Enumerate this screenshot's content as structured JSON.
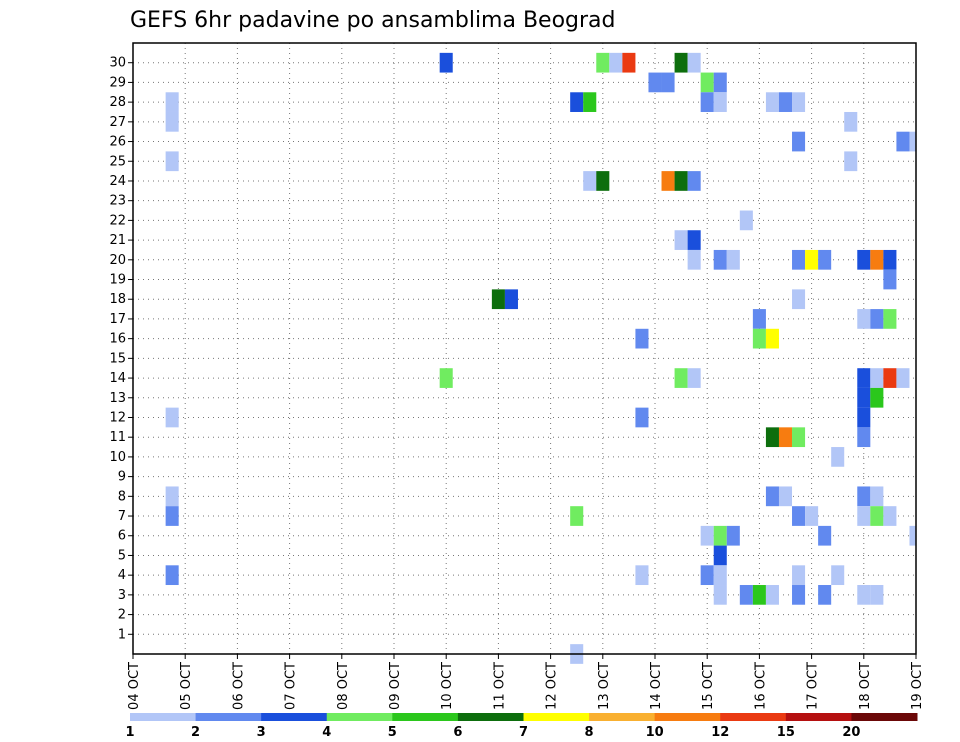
{
  "chart_data": {
    "type": "heatmap",
    "title": "GEFS 6hr padavine po ansamblima Beograd",
    "xlabel": "",
    "ylabel": "",
    "y_ticks": [
      1,
      2,
      3,
      4,
      5,
      6,
      7,
      8,
      9,
      10,
      11,
      12,
      13,
      14,
      15,
      16,
      17,
      18,
      19,
      20,
      21,
      22,
      23,
      24,
      25,
      26,
      27,
      28,
      29,
      30
    ],
    "x_ticks": [
      "04 OCT",
      "05 OCT",
      "06 OCT",
      "07 OCT",
      "08 OCT",
      "09 OCT",
      "10 OCT",
      "11 OCT",
      "12 OCT",
      "13 OCT",
      "14 OCT",
      "15 OCT",
      "16 OCT",
      "17 OCT",
      "18 OCT",
      "19 OCT"
    ],
    "xlim_days": [
      0,
      15
    ],
    "ylim": [
      0,
      30
    ],
    "time_step_hours": 6,
    "grid": true,
    "legend_placement": "bottom",
    "colorbar": {
      "labels": [
        "1",
        "2",
        "3",
        "4",
        "5",
        "6",
        "7",
        "8",
        "10",
        "12",
        "15",
        "20"
      ],
      "colors": [
        "#b2c6f7",
        "#6189ef",
        "#1a4fdc",
        "#70ec60",
        "#2bc71c",
        "#0d6e0d",
        "#ffff00",
        "#f9b030",
        "#f77c10",
        "#ea3a12",
        "#b51010",
        "#6b0808"
      ]
    },
    "cells": [
      {
        "m": 30,
        "t": "10 OCT 00Z",
        "v": 3
      },
      {
        "m": 30,
        "t": "13 OCT 00Z",
        "v": 4
      },
      {
        "m": 30,
        "t": "13 OCT 06Z",
        "v": 1
      },
      {
        "m": 30,
        "t": "13 OCT 12Z",
        "v": 12
      },
      {
        "m": 30,
        "t": "14 OCT 12Z",
        "v": 6
      },
      {
        "m": 30,
        "t": "14 OCT 18Z",
        "v": 1
      },
      {
        "m": 29,
        "t": "14 OCT 00Z",
        "v": 2
      },
      {
        "m": 29,
        "t": "14 OCT 06Z",
        "v": 2
      },
      {
        "m": 29,
        "t": "15 OCT 00Z",
        "v": 4
      },
      {
        "m": 29,
        "t": "15 OCT 06Z",
        "v": 2
      },
      {
        "m": 28,
        "t": "04 OCT 18Z",
        "v": 1
      },
      {
        "m": 28,
        "t": "12 OCT 12Z",
        "v": 3
      },
      {
        "m": 28,
        "t": "12 OCT 18Z",
        "v": 5
      },
      {
        "m": 28,
        "t": "15 OCT 00Z",
        "v": 2
      },
      {
        "m": 28,
        "t": "15 OCT 06Z",
        "v": 1
      },
      {
        "m": 28,
        "t": "16 OCT 06Z",
        "v": 1
      },
      {
        "m": 28,
        "t": "16 OCT 12Z",
        "v": 2
      },
      {
        "m": 28,
        "t": "16 OCT 18Z",
        "v": 1
      },
      {
        "m": 27,
        "t": "04 OCT 18Z",
        "v": 1
      },
      {
        "m": 27,
        "t": "17 OCT 18Z",
        "v": 1
      },
      {
        "m": 26,
        "t": "16 OCT 18Z",
        "v": 2
      },
      {
        "m": 26,
        "t": "18 OCT 18Z",
        "v": 2
      },
      {
        "m": 26,
        "t": "19 OCT 00Z",
        "v": 1
      },
      {
        "m": 25,
        "t": "04 OCT 18Z",
        "v": 1
      },
      {
        "m": 25,
        "t": "17 OCT 18Z",
        "v": 1
      },
      {
        "m": 24,
        "t": "12 OCT 18Z",
        "v": 1
      },
      {
        "m": 24,
        "t": "13 OCT 00Z",
        "v": 6
      },
      {
        "m": 24,
        "t": "14 OCT 06Z",
        "v": 10
      },
      {
        "m": 24,
        "t": "14 OCT 12Z",
        "v": 6
      },
      {
        "m": 24,
        "t": "14 OCT 18Z",
        "v": 2
      },
      {
        "m": 22,
        "t": "15 OCT 18Z",
        "v": 1
      },
      {
        "m": 21,
        "t": "14 OCT 12Z",
        "v": 1
      },
      {
        "m": 21,
        "t": "14 OCT 18Z",
        "v": 3
      },
      {
        "m": 20,
        "t": "14 OCT 18Z",
        "v": 1
      },
      {
        "m": 20,
        "t": "15 OCT 06Z",
        "v": 2
      },
      {
        "m": 20,
        "t": "15 OCT 12Z",
        "v": 1
      },
      {
        "m": 20,
        "t": "16 OCT 18Z",
        "v": 2
      },
      {
        "m": 20,
        "t": "17 OCT 00Z",
        "v": 7
      },
      {
        "m": 20,
        "t": "17 OCT 06Z",
        "v": 2
      },
      {
        "m": 20,
        "t": "18 OCT 00Z",
        "v": 3
      },
      {
        "m": 20,
        "t": "18 OCT 06Z",
        "v": 10
      },
      {
        "m": 20,
        "t": "18 OCT 12Z",
        "v": 3
      },
      {
        "m": 19,
        "t": "18 OCT 12Z",
        "v": 2
      },
      {
        "m": 18,
        "t": "11 OCT 00Z",
        "v": 6
      },
      {
        "m": 18,
        "t": "11 OCT 06Z",
        "v": 3
      },
      {
        "m": 18,
        "t": "16 OCT 18Z",
        "v": 1
      },
      {
        "m": 17,
        "t": "16 OCT 00Z",
        "v": 2
      },
      {
        "m": 17,
        "t": "18 OCT 00Z",
        "v": 1
      },
      {
        "m": 17,
        "t": "18 OCT 06Z",
        "v": 2
      },
      {
        "m": 17,
        "t": "18 OCT 12Z",
        "v": 4
      },
      {
        "m": 16,
        "t": "13 OCT 18Z",
        "v": 2
      },
      {
        "m": 16,
        "t": "16 OCT 00Z",
        "v": 4
      },
      {
        "m": 16,
        "t": "16 OCT 06Z",
        "v": 7
      },
      {
        "m": 14,
        "t": "10 OCT 00Z",
        "v": 4
      },
      {
        "m": 14,
        "t": "14 OCT 12Z",
        "v": 4
      },
      {
        "m": 14,
        "t": "14 OCT 18Z",
        "v": 1
      },
      {
        "m": 14,
        "t": "18 OCT 00Z",
        "v": 3
      },
      {
        "m": 14,
        "t": "18 OCT 06Z",
        "v": 1
      },
      {
        "m": 14,
        "t": "18 OCT 12Z",
        "v": 12
      },
      {
        "m": 14,
        "t": "18 OCT 18Z",
        "v": 1
      },
      {
        "m": 13,
        "t": "18 OCT 00Z",
        "v": 3
      },
      {
        "m": 13,
        "t": "18 OCT 06Z",
        "v": 5
      },
      {
        "m": 12,
        "t": "04 OCT 18Z",
        "v": 1
      },
      {
        "m": 12,
        "t": "13 OCT 18Z",
        "v": 2
      },
      {
        "m": 12,
        "t": "18 OCT 00Z",
        "v": 3
      },
      {
        "m": 11,
        "t": "16 OCT 06Z",
        "v": 6
      },
      {
        "m": 11,
        "t": "16 OCT 12Z",
        "v": 10
      },
      {
        "m": 11,
        "t": "16 OCT 18Z",
        "v": 4
      },
      {
        "m": 11,
        "t": "18 OCT 00Z",
        "v": 2
      },
      {
        "m": 10,
        "t": "17 OCT 12Z",
        "v": 1
      },
      {
        "m": 8,
        "t": "04 OCT 18Z",
        "v": 1
      },
      {
        "m": 8,
        "t": "16 OCT 06Z",
        "v": 2
      },
      {
        "m": 8,
        "t": "16 OCT 12Z",
        "v": 1
      },
      {
        "m": 8,
        "t": "18 OCT 00Z",
        "v": 2
      },
      {
        "m": 8,
        "t": "18 OCT 06Z",
        "v": 1
      },
      {
        "m": 7,
        "t": "04 OCT 18Z",
        "v": 2
      },
      {
        "m": 7,
        "t": "12 OCT 12Z",
        "v": 4
      },
      {
        "m": 7,
        "t": "16 OCT 18Z",
        "v": 2
      },
      {
        "m": 7,
        "t": "17 OCT 00Z",
        "v": 1
      },
      {
        "m": 7,
        "t": "18 OCT 00Z",
        "v": 1
      },
      {
        "m": 7,
        "t": "18 OCT 06Z",
        "v": 4
      },
      {
        "m": 7,
        "t": "18 OCT 12Z",
        "v": 1
      },
      {
        "m": 6,
        "t": "15 OCT 00Z",
        "v": 1
      },
      {
        "m": 6,
        "t": "15 OCT 06Z",
        "v": 4
      },
      {
        "m": 6,
        "t": "15 OCT 12Z",
        "v": 2
      },
      {
        "m": 6,
        "t": "17 OCT 06Z",
        "v": 2
      },
      {
        "m": 6,
        "t": "19 OCT 00Z",
        "v": 1
      },
      {
        "m": 5,
        "t": "15 OCT 06Z",
        "v": 3
      },
      {
        "m": 4,
        "t": "04 OCT 18Z",
        "v": 2
      },
      {
        "m": 4,
        "t": "13 OCT 18Z",
        "v": 1
      },
      {
        "m": 4,
        "t": "15 OCT 00Z",
        "v": 2
      },
      {
        "m": 4,
        "t": "15 OCT 06Z",
        "v": 1
      },
      {
        "m": 4,
        "t": "16 OCT 18Z",
        "v": 1
      },
      {
        "m": 4,
        "t": "17 OCT 12Z",
        "v": 1
      },
      {
        "m": 3,
        "t": "15 OCT 06Z",
        "v": 1
      },
      {
        "m": 3,
        "t": "15 OCT 18Z",
        "v": 2
      },
      {
        "m": 3,
        "t": "16 OCT 00Z",
        "v": 5
      },
      {
        "m": 3,
        "t": "16 OCT 06Z",
        "v": 1
      },
      {
        "m": 3,
        "t": "16 OCT 18Z",
        "v": 2
      },
      {
        "m": 3,
        "t": "17 OCT 06Z",
        "v": 2
      },
      {
        "m": 3,
        "t": "18 OCT 00Z",
        "v": 1
      },
      {
        "m": 3,
        "t": "18 OCT 06Z",
        "v": 1
      },
      {
        "m": 0,
        "t": "12 OCT 12Z",
        "v": 1
      }
    ]
  }
}
